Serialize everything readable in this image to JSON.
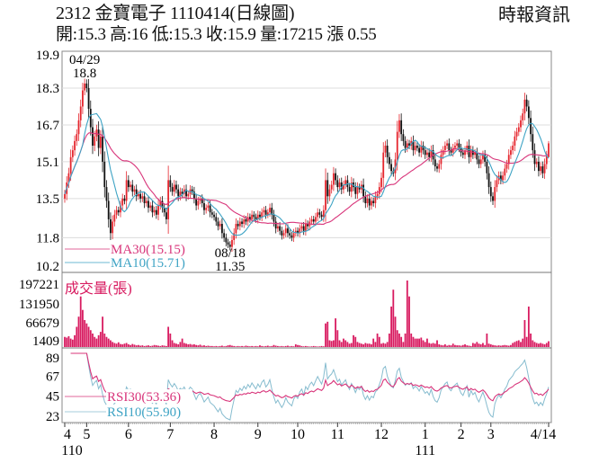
{
  "header": {
    "title": "2312  金寶電子 1110414(日線圖)",
    "quote": "開:15.3 高:16 低:15.3 收:15.9 量:17215 漲 0.55",
    "source": "時報資訊"
  },
  "colors": {
    "up": "#e5262e",
    "down": "#111111",
    "ma30": "#d8347a",
    "ma10": "#3ea3c4",
    "volume": "#d81b60",
    "rsi30": "#d8347a",
    "rsi10": "#86bccf",
    "grid": "#dcdcdc"
  },
  "chart_data": [
    {
      "type": "candlestick",
      "panel": "price",
      "yticks": [
        19.9,
        18.3,
        16.7,
        15.1,
        13.5,
        11.8,
        10.2
      ],
      "ylim": [
        10.2,
        19.9
      ],
      "grid": true,
      "annotations": [
        {
          "date": "04/29",
          "value": "18.8",
          "index": 10
        },
        {
          "date": "08/18",
          "value": "11.35",
          "index": 83
        }
      ],
      "last": {
        "open": 15.3,
        "high": 16,
        "low": 15.3,
        "close": 15.9
      },
      "closes": [
        13.7,
        14.2,
        14.6,
        15.3,
        15.6,
        16.0,
        16.3,
        16.9,
        17.5,
        18.2,
        18.5,
        18.3,
        17.4,
        16.6,
        15.8,
        16.2,
        16.5,
        15.7,
        16.2,
        15.1,
        14.0,
        13.4,
        12.6,
        12.0,
        12.5,
        12.8,
        13.0,
        12.9,
        13.2,
        13.5,
        13.4,
        14.3,
        14.0,
        14.1,
        13.8,
        13.9,
        13.6,
        13.7,
        13.5,
        13.6,
        13.3,
        13.4,
        13.1,
        13.2,
        12.9,
        13.0,
        12.8,
        13.2,
        13.4,
        13.1,
        12.9,
        12.6,
        14.3,
        14.0,
        13.8,
        14.1,
        13.9,
        13.6,
        13.8,
        13.7,
        13.9,
        13.6,
        13.7,
        13.9,
        13.8,
        13.5,
        13.2,
        13.4,
        13.5,
        13.3,
        13.0,
        13.1,
        13.2,
        12.9,
        12.8,
        12.7,
        12.5,
        12.3,
        12.4,
        12.0,
        11.8,
        11.6,
        11.5,
        11.4,
        11.7,
        12.0,
        12.4,
        12.3,
        12.5,
        12.4,
        12.6,
        12.5,
        12.7,
        12.6,
        12.8,
        12.7,
        12.6,
        12.8,
        12.7,
        12.9,
        13.0,
        12.8,
        12.9,
        13.1,
        12.8,
        12.5,
        12.2,
        12.3,
        12.1,
        11.9,
        12.0,
        12.2,
        12.0,
        11.9,
        11.8,
        12.0,
        12.1,
        12.0,
        12.2,
        12.3,
        12.1,
        12.4,
        12.3,
        12.5,
        12.6,
        12.5,
        12.7,
        12.9,
        12.8,
        12.7,
        13.0,
        14.3,
        13.6,
        13.9,
        14.1,
        14.6,
        14.3,
        14.0,
        14.2,
        13.9,
        14.1,
        14.3,
        14.0,
        13.8,
        14.2,
        14.0,
        13.7,
        14.0,
        13.9,
        14.1,
        13.6,
        13.3,
        13.5,
        13.2,
        13.4,
        13.3,
        13.6,
        13.7,
        14.0,
        14.4,
        15.5,
        15.8,
        15.3,
        15.0,
        14.7,
        14.6,
        15.2,
        16.4,
        16.9,
        16.3,
        16.0,
        15.7,
        15.9,
        15.8,
        16.0,
        15.6,
        15.8,
        15.7,
        15.5,
        15.8,
        15.6,
        15.4,
        15.5,
        15.3,
        15.6,
        15.2,
        14.9,
        14.8,
        15.0,
        15.4,
        15.6,
        15.8,
        15.9,
        15.6,
        15.5,
        15.7,
        15.8,
        15.9,
        15.7,
        15.5,
        15.4,
        15.6,
        15.8,
        15.3,
        15.6,
        15.4,
        15.5,
        15.2,
        15.0,
        15.2,
        15.4,
        15.1,
        14.6,
        14.0,
        13.6,
        13.4,
        14.0,
        14.3,
        14.5,
        14.3,
        14.5,
        14.8,
        15.0,
        15.4,
        15.6,
        15.8,
        16.2,
        16.4,
        16.6,
        16.9,
        17.2,
        17.8,
        17.5,
        17.0,
        16.3,
        15.6,
        15.0,
        15.1,
        14.7,
        14.9,
        14.6,
        15.0,
        15.35,
        15.9
      ],
      "legend": [
        {
          "label": "MA30(15.15)",
          "color": "#d8347a"
        },
        {
          "label": "MA10(15.71)",
          "color": "#3ea3c4"
        }
      ]
    },
    {
      "type": "bar",
      "panel": "volume",
      "title": "成交量(張)",
      "yticks": [
        197221,
        131950,
        66679,
        1409
      ],
      "values": [
        30000,
        28000,
        32000,
        25000,
        22000,
        35000,
        60000,
        90000,
        150000,
        110000,
        80000,
        70000,
        60000,
        50000,
        40000,
        30000,
        25000,
        35000,
        45000,
        90000,
        40000,
        30000,
        25000,
        20000,
        15000,
        12000,
        10000,
        14000,
        9000,
        8000,
        10000,
        12000,
        8000,
        6000,
        9000,
        7000,
        5000,
        6000,
        4000,
        5000,
        3000,
        4000,
        5000,
        3000,
        4000,
        6000,
        5000,
        4000,
        3000,
        5000,
        4000,
        3000,
        60000,
        40000,
        20000,
        12000,
        10000,
        8000,
        15000,
        25000,
        12000,
        10000,
        8000,
        9000,
        7000,
        8000,
        6000,
        5000,
        7000,
        4000,
        5000,
        3000,
        4000,
        3000,
        3000,
        2000,
        3000,
        2000,
        3000,
        4000,
        2000,
        3000,
        5000,
        6000,
        4000,
        3000,
        2000,
        3000,
        2000,
        3000,
        2000,
        4000,
        3000,
        2000,
        3000,
        2000,
        3000,
        2000,
        5000,
        3000,
        2000,
        3000,
        4000,
        2000,
        3000,
        6000,
        4000,
        3000,
        2000,
        3000,
        2000,
        3000,
        4000,
        2000,
        3000,
        2000,
        8000,
        6000,
        5000,
        3000,
        2000,
        3000,
        2000,
        1500,
        2000,
        3000,
        2000,
        1500,
        2000,
        3000,
        2000,
        70000,
        75000,
        20000,
        18000,
        20000,
        85000,
        50000,
        20000,
        15000,
        25000,
        20000,
        15000,
        10000,
        12000,
        35000,
        30000,
        15000,
        12000,
        10000,
        8000,
        12000,
        10000,
        10000,
        8000,
        25000,
        15000,
        40000,
        30000,
        10000,
        12000,
        10000,
        15000,
        40000,
        120000,
        170000,
        90000,
        50000,
        40000,
        30000,
        15000,
        40000,
        197221,
        150000,
        40000,
        30000,
        25000,
        25000,
        25000,
        28000,
        20000,
        15000,
        25000,
        12000,
        10000,
        12000,
        10000,
        20000,
        8000,
        6000,
        5000,
        8000,
        4000,
        6000,
        5000,
        10000,
        6000,
        5000,
        5000,
        4000,
        6000,
        8000,
        5000,
        4000,
        3000,
        12000,
        10000,
        15000,
        10000,
        8000,
        12000,
        6000,
        40000,
        10000,
        8000,
        6000,
        5000,
        4000,
        5000,
        4000,
        5000,
        6000,
        5000,
        4000,
        6000,
        12000,
        15000,
        18000,
        20000,
        15000,
        25000,
        80000,
        30000,
        120000,
        40000,
        20000,
        15000,
        12000,
        10000,
        12000,
        10000,
        8000,
        12000,
        17215
      ]
    },
    {
      "type": "line",
      "panel": "rsi",
      "yticks": [
        89,
        67,
        45,
        23
      ],
      "legend": [
        {
          "label": "RSI30(53.36)",
          "color": "#d8347a"
        },
        {
          "label": "RSI10(55.90)",
          "color": "#86bccf"
        }
      ]
    }
  ],
  "xaxis": {
    "months": [
      {
        "label": "4",
        "index": 0
      },
      {
        "label": "5",
        "index": 11
      },
      {
        "label": "6",
        "index": 32
      },
      {
        "label": "7",
        "index": 53
      },
      {
        "label": "8",
        "index": 75
      },
      {
        "label": "9",
        "index": 97
      },
      {
        "label": "10",
        "index": 117
      },
      {
        "label": "11",
        "index": 137
      },
      {
        "label": "12",
        "index": 159
      },
      {
        "label": "1",
        "index": 181
      },
      {
        "label": "2",
        "index": 199
      },
      {
        "label": "3",
        "index": 214
      },
      {
        "label": "4/14",
        "index": 243
      }
    ],
    "years": [
      {
        "label": "110",
        "index": 0
      },
      {
        "label": "111",
        "index": 181
      }
    ]
  }
}
